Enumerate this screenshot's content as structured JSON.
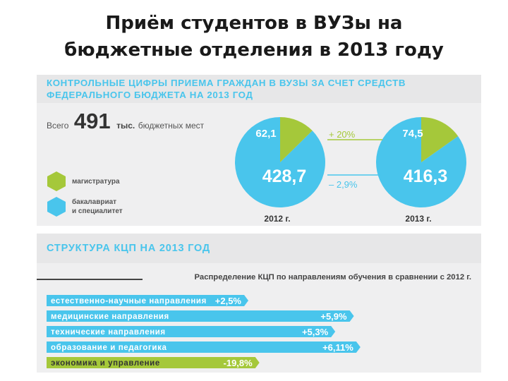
{
  "slide_title": [
    "Приём студентов в ВУЗы на",
    "бюджетные отделения в 2013 году"
  ],
  "colors": {
    "blue": "#49c5ec",
    "green": "#a5c83a",
    "gray_text": "#444444",
    "panel": "#efeff0"
  },
  "chart_data": [
    {
      "type": "pie",
      "title": "КОНТРОЛЬНЫЕ ЦИФРЫ ПРИЕМА ГРАЖДАН В ВУЗЫ ЗА СЧЕТ СРЕДСТВ ФЕДЕРАЛЬНОГО БЮДЖЕТА НА 2013 ГОД",
      "total": {
        "prefix": "Всего",
        "value": "491",
        "unit": "тыс.",
        "suffix": "бюджетных мест"
      },
      "legend": [
        {
          "label": "магистратура",
          "color": "#a5c83a"
        },
        {
          "label": "бакалавриат\nи специалитет",
          "color": "#49c5ec"
        }
      ],
      "pies": [
        {
          "year_label": "2012 г.",
          "slices": [
            {
              "series": "магистратура",
              "value": 62.1,
              "label": "62,1"
            },
            {
              "series": "бакалавриат и специалитет",
              "value": 428.7,
              "label": "428,7"
            }
          ]
        },
        {
          "year_label": "2013 г.",
          "slices": [
            {
              "series": "магистратура",
              "value": 74.5,
              "label": "74,5"
            },
            {
              "series": "бакалавриат и специалитет",
              "value": 416.3,
              "label": "416,3"
            }
          ]
        }
      ],
      "changes": [
        {
          "series": "магистратура",
          "label": "+ 20%"
        },
        {
          "series": "бакалавриат и специалитет",
          "label": "– 2,9%"
        }
      ]
    },
    {
      "type": "bar",
      "title": "СТРУКТУРА КЦП НА 2013 ГОД",
      "subtitle": "Распределение КЦП по направлениям обучения в сравнении с 2012 г.",
      "categories": [
        "естественно-научные направления",
        "медицинские направления",
        "технические направления",
        "образование и педагогика",
        "экономика и управление"
      ],
      "values": [
        2.5,
        5.9,
        5.3,
        6.11,
        -19.8
      ],
      "value_labels": [
        "+2,5%",
        "+5,9%",
        "+5,3%",
        "+6,11%",
        "-19,8%"
      ]
    }
  ]
}
